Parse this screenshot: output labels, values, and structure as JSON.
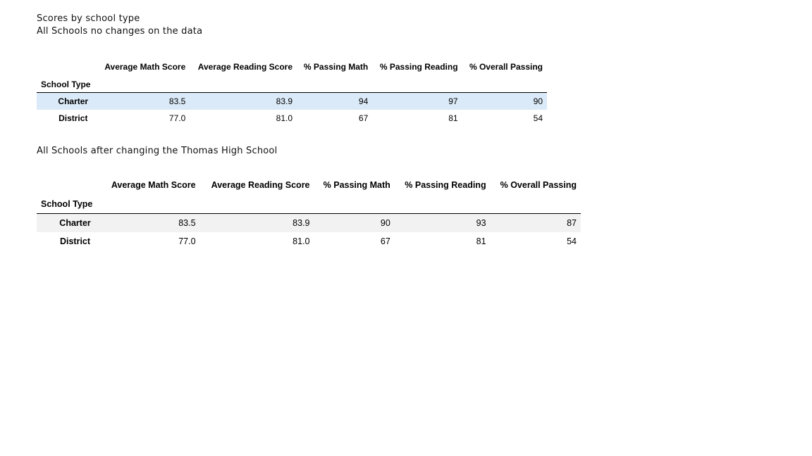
{
  "captions": {
    "title": "Scores by school type",
    "subtitle_original": "All Schools no changes on the data",
    "subtitle_changed": "All Schools after changing the Thomas High School"
  },
  "table_original": {
    "index_name": "School Type",
    "columns": [
      "Average Math Score",
      "Average Reading Score",
      "% Passing Math",
      "% Passing Reading",
      "% Overall Passing"
    ],
    "rows": [
      {
        "label": "Charter",
        "values": [
          "83.5",
          "83.9",
          "94",
          "97",
          "90"
        ]
      },
      {
        "label": "District",
        "values": [
          "77.0",
          "81.0",
          "67",
          "81",
          "54"
        ]
      }
    ],
    "highlight_color": "#dbeaf8"
  },
  "table_changed": {
    "index_name": "School Type",
    "columns": [
      "Average Math Score",
      "Average Reading Score",
      "% Passing Math",
      "% Passing Reading",
      "% Overall Passing"
    ],
    "rows": [
      {
        "label": "Charter",
        "values": [
          "83.5",
          "83.9",
          "90",
          "93",
          "87"
        ]
      },
      {
        "label": "District",
        "values": [
          "77.0",
          "81.0",
          "67",
          "81",
          "54"
        ]
      }
    ],
    "stripe_color": "#f2f2f2"
  }
}
